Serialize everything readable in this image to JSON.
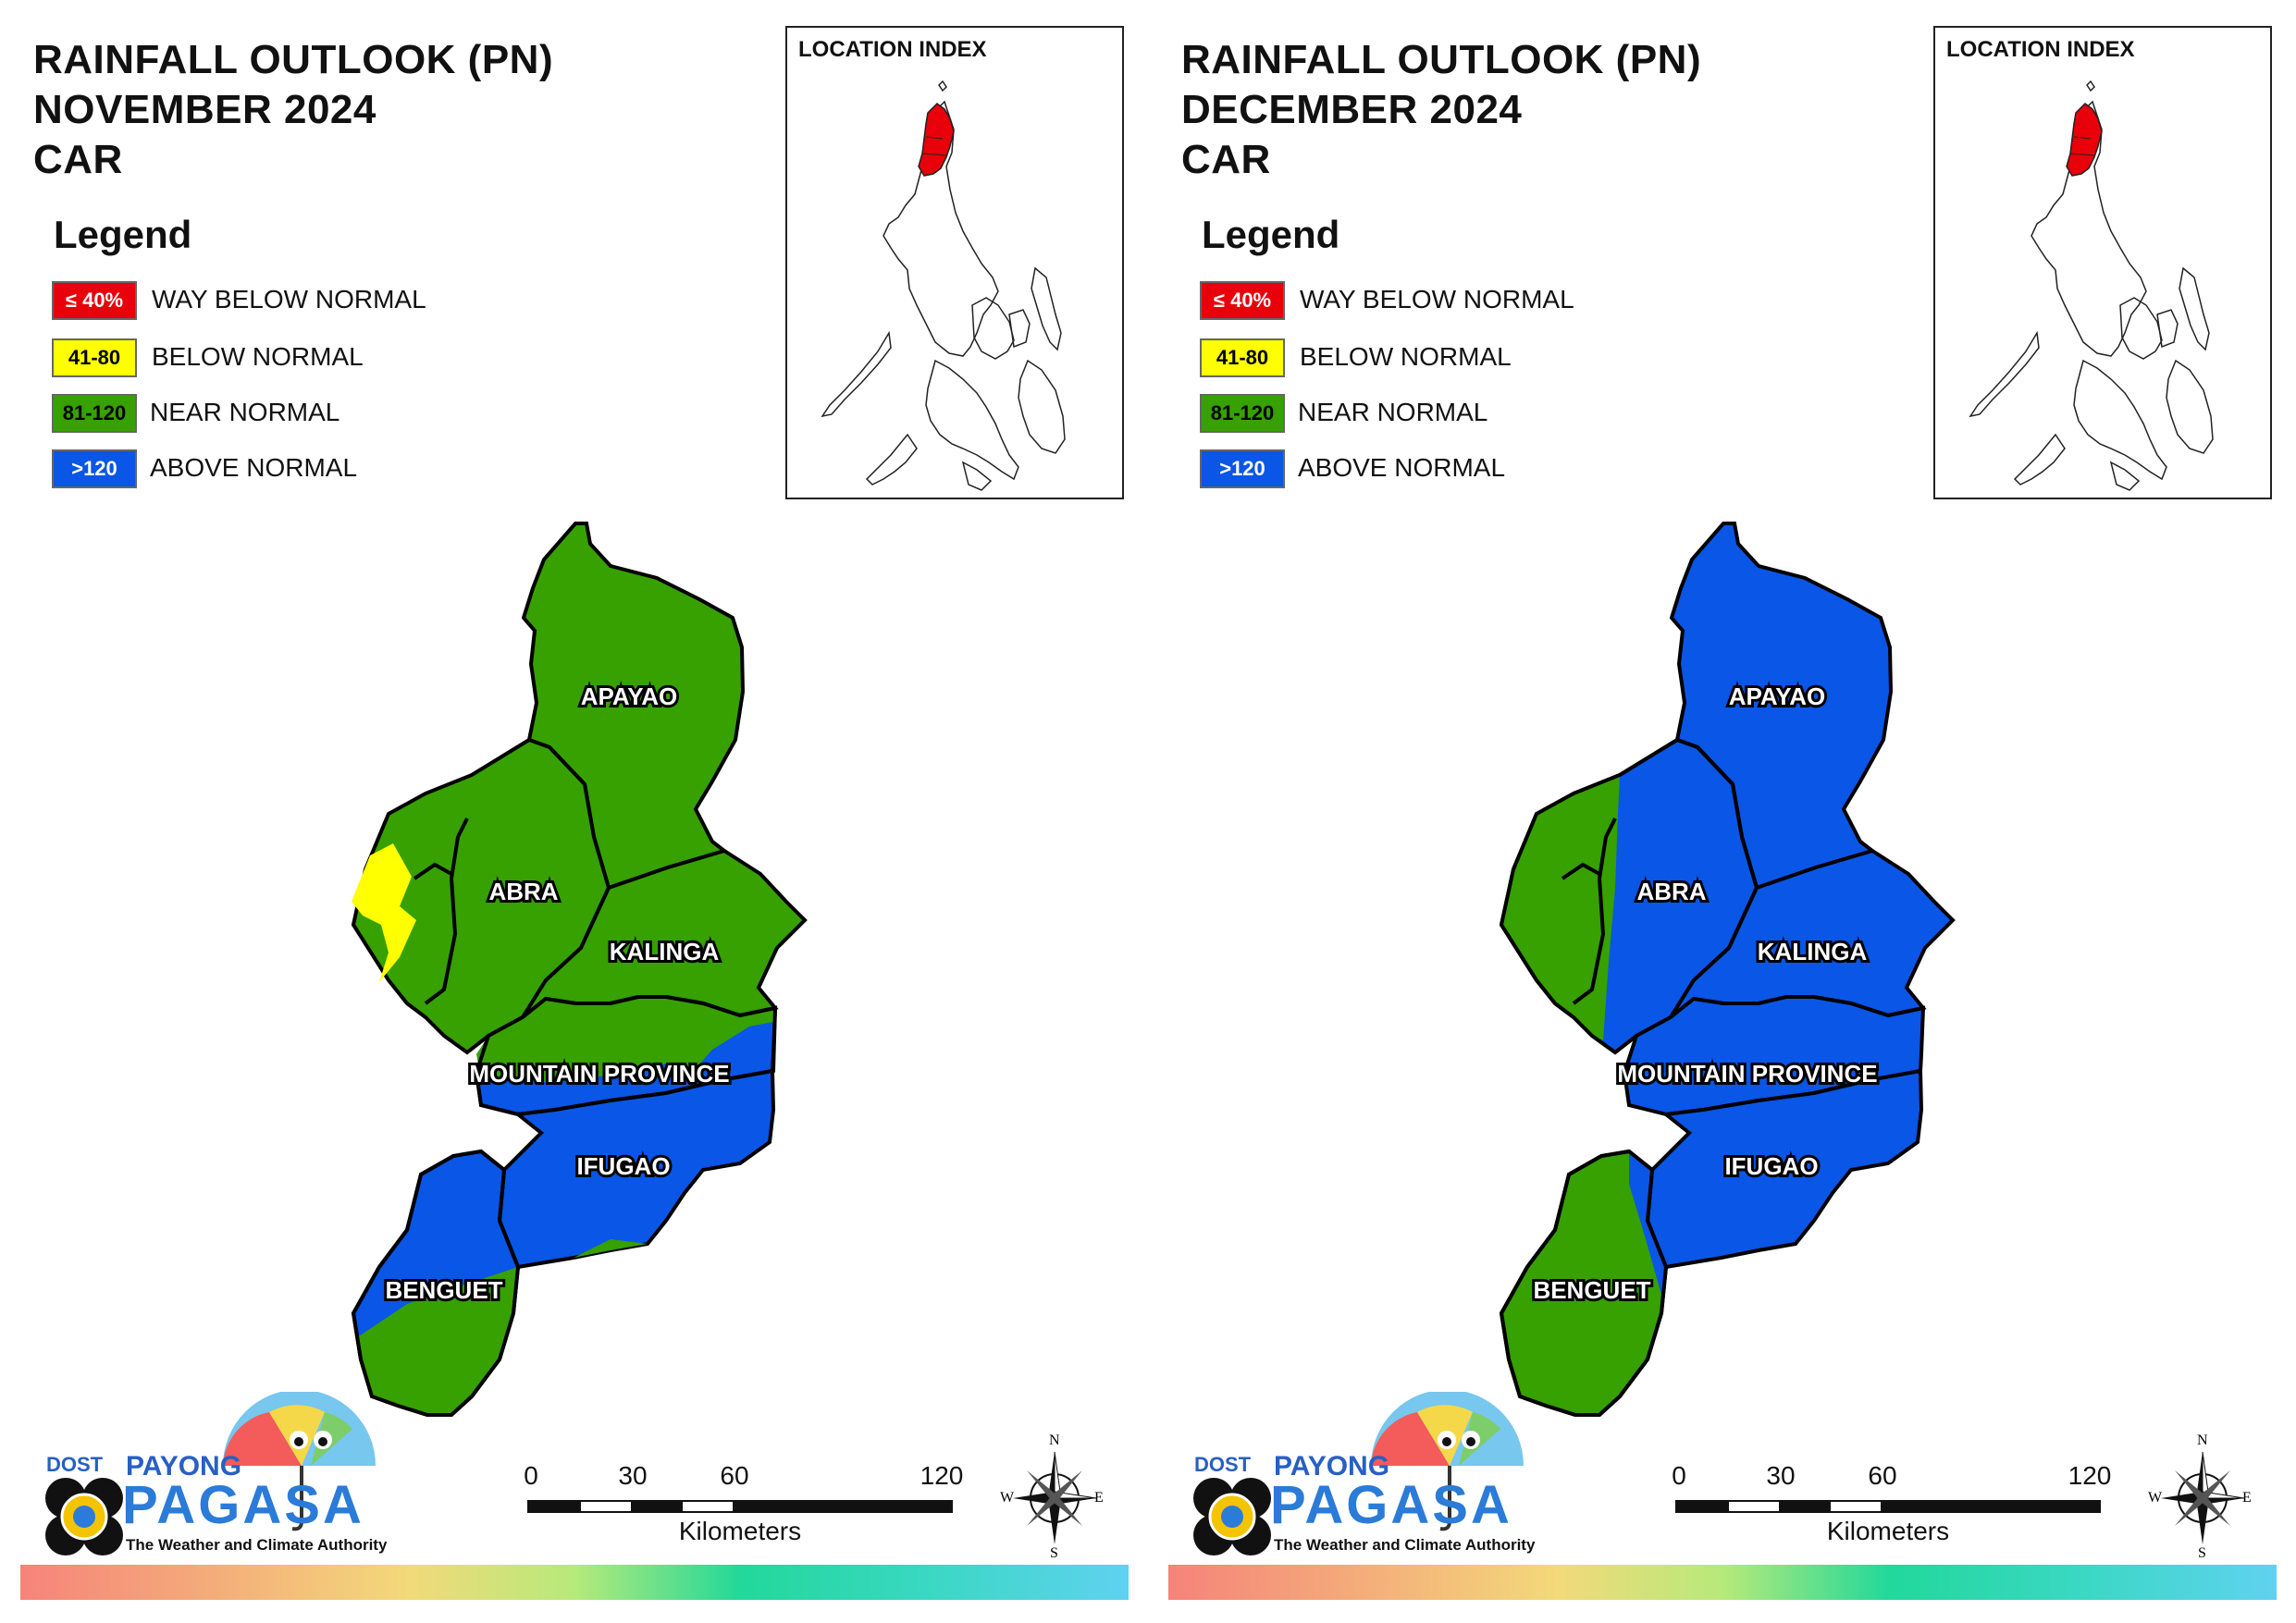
{
  "panels": [
    {
      "id": "november",
      "title_lines": [
        "RAINFALL OUTLOOK (PN)",
        "NOVEMBER 2024",
        "CAR"
      ],
      "provinces": {
        "apayao": {
          "label": "APAYAO",
          "category": "near_normal"
        },
        "abra": {
          "label": "ABRA",
          "category": "near_normal",
          "secondary_category": "below_normal"
        },
        "kalinga": {
          "label": "KALINGA",
          "category": "near_normal"
        },
        "mountain_province": {
          "label": "MOUNTAIN PROVINCE",
          "category": "above_normal",
          "secondary_category": "near_normal"
        },
        "ifugao": {
          "label": "IFUGAO",
          "category": "above_normal"
        },
        "benguet": {
          "label": "BENGUET",
          "category": "near_normal",
          "secondary_category": "above_normal"
        }
      }
    },
    {
      "id": "december",
      "title_lines": [
        "RAINFALL OUTLOOK (PN)",
        "DECEMBER 2024",
        "CAR"
      ],
      "provinces": {
        "apayao": {
          "label": "APAYAO",
          "category": "above_normal"
        },
        "abra": {
          "label": "ABRA",
          "category": "above_normal",
          "secondary_category": "near_normal"
        },
        "kalinga": {
          "label": "KALINGA",
          "category": "above_normal"
        },
        "mountain_province": {
          "label": "MOUNTAIN PROVINCE",
          "category": "above_normal"
        },
        "ifugao": {
          "label": "IFUGAO",
          "category": "above_normal"
        },
        "benguet": {
          "label": "BENGUET",
          "category": "near_normal",
          "secondary_category": "above_normal"
        }
      }
    }
  ],
  "legend": {
    "title": "Legend",
    "items": [
      {
        "key": "way_below_normal",
        "range": "≤ 40%",
        "label": "WAY BELOW NORMAL",
        "color": "#e8000b",
        "text_color": "#ffffff"
      },
      {
        "key": "below_normal",
        "range": "41-80",
        "label": "BELOW NORMAL",
        "color": "#ffff00",
        "text_color": "#000000"
      },
      {
        "key": "near_normal",
        "range": "81-120",
        "label": "NEAR NORMAL",
        "color": "#36a100",
        "text_color": "#000000"
      },
      {
        "key": "above_normal",
        "range": ">120",
        "label": "ABOVE NORMAL",
        "color": "#0a56e6",
        "text_color": "#ffffff"
      }
    ]
  },
  "inset": {
    "title": "LOCATION INDEX",
    "highlight_color": "#e8000b"
  },
  "scale_bar": {
    "ticks": [
      "0",
      "30",
      "60",
      "120"
    ],
    "unit": "Kilometers"
  },
  "compass": {
    "n": "N",
    "s": "S",
    "e": "E",
    "w": "W"
  },
  "logo": {
    "dost": "DOST",
    "payong": "PAYONG",
    "pagasa": "PAGASA",
    "tagline": "The Weather and Climate Authority"
  }
}
